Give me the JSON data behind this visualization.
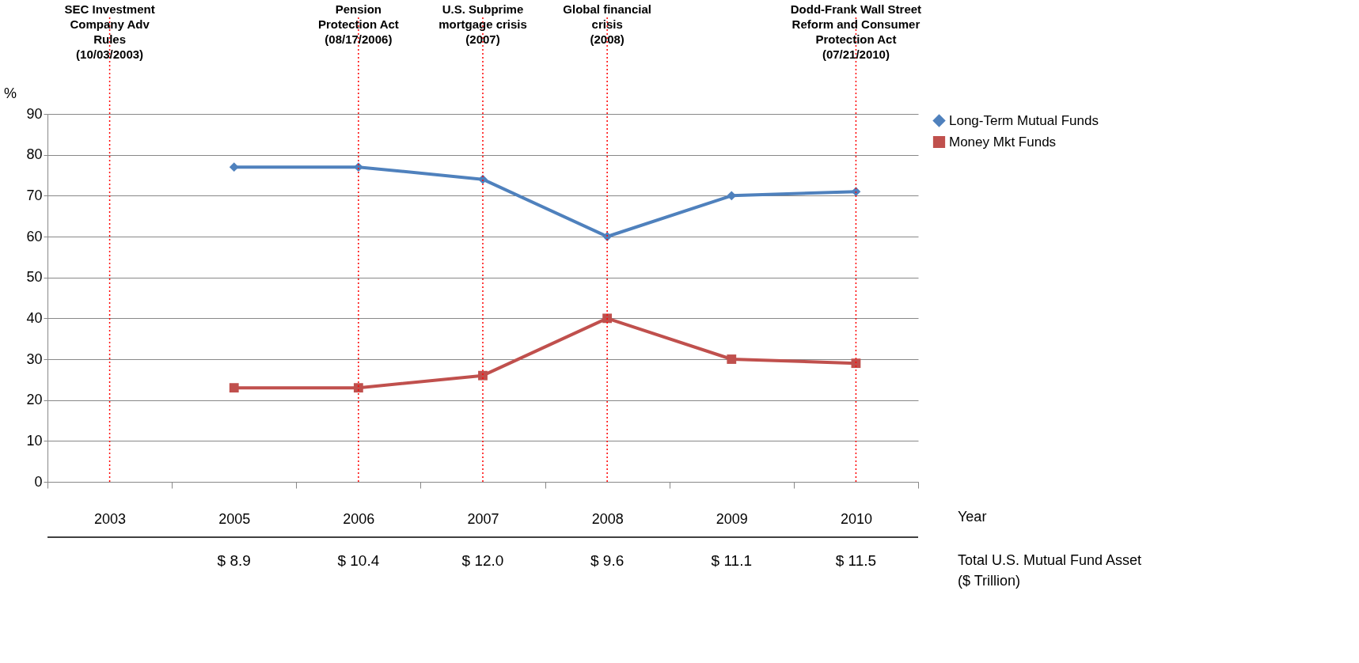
{
  "chart_data": {
    "type": "line",
    "ylabel": "%",
    "xlabel": "Year",
    "categories": [
      "2003",
      "2005",
      "2006",
      "2007",
      "2008",
      "2009",
      "2010"
    ],
    "series": [
      {
        "name": "Long-Term Mutual Funds",
        "color": "#4f81bd",
        "marker": "diamond",
        "values": [
          null,
          77,
          77,
          74,
          60,
          70,
          71
        ]
      },
      {
        "name": "Money Mkt Funds",
        "color": "#c0504d",
        "marker": "square",
        "values": [
          null,
          23,
          23,
          26,
          40,
          30,
          29
        ]
      }
    ],
    "ylim": [
      0,
      90
    ],
    "yticks": [
      0,
      10,
      20,
      30,
      40,
      50,
      60,
      70,
      80,
      90
    ],
    "grid": "y",
    "legend": "right",
    "ref_lines": [
      {
        "axis": "x",
        "value": "2003",
        "label": "SEC Investment\nCompany Adv\nRules\n(10/03/2003)",
        "color": "#ff0000",
        "line_style": "dotted"
      },
      {
        "axis": "x",
        "value": "2006",
        "label": "Pension\nProtection Act\n(08/17/2006)",
        "color": "#ff0000",
        "line_style": "dotted"
      },
      {
        "axis": "x",
        "value": "2007",
        "label": "U.S. Subprime\nmortgage crisis\n(2007)",
        "color": "#ff0000",
        "line_style": "dotted"
      },
      {
        "axis": "x",
        "value": "2008",
        "label": "Global financial\ncrisis\n(2008)",
        "color": "#ff0000",
        "line_style": "dotted"
      },
      {
        "axis": "x",
        "value": "2010",
        "label": "Dodd-Frank Wall Street\nReform and Consumer\nProtection Act\n(07/21/2010)",
        "color": "#ff0000",
        "line_style": "dotted"
      }
    ],
    "annotations": [
      "$ 8.9",
      "$ 10.4",
      "$ 12.0",
      "$ 9.6",
      "$ 11.1",
      "$ 11.5",
      "Total U.S. Mutual Fund Asset\n($ Trillion)"
    ]
  }
}
